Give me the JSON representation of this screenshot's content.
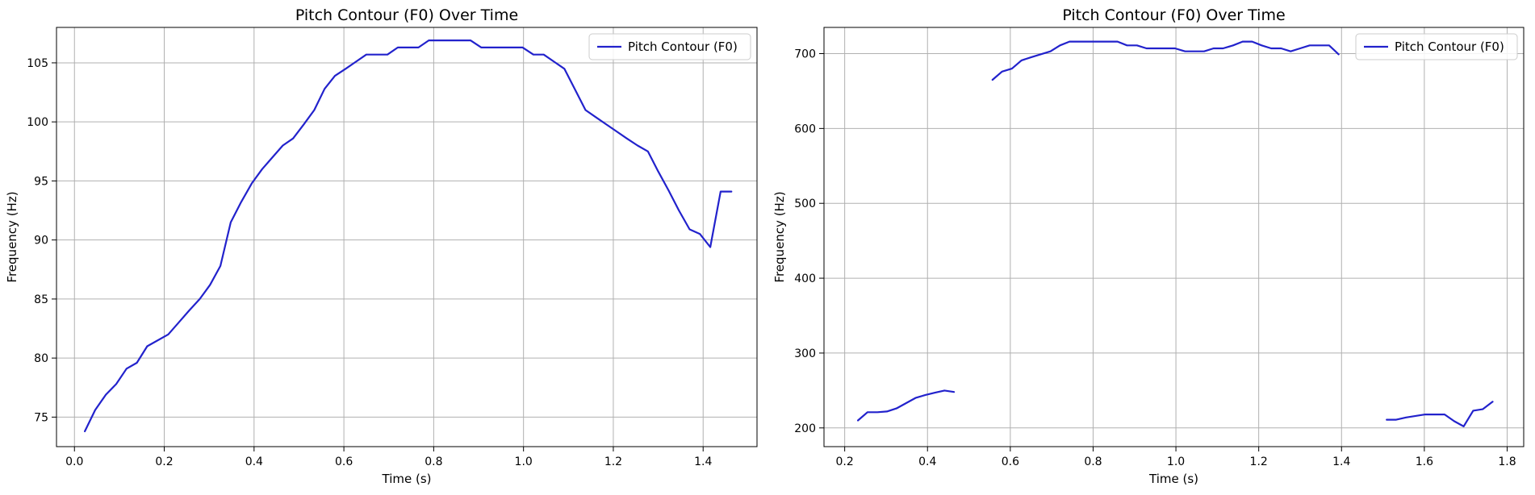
{
  "chart_data": [
    {
      "type": "line",
      "title": "Pitch Contour (F0) Over Time",
      "xlabel": "Time (s)",
      "ylabel": "Frequency (Hz)",
      "xlim": [
        -0.04,
        1.52
      ],
      "ylim": [
        72.5,
        108.0
      ],
      "xticks": [
        0.0,
        0.2,
        0.4,
        0.6,
        0.8,
        1.0,
        1.2,
        1.4
      ],
      "xtick_labels": [
        "0.0",
        "0.2",
        "0.4",
        "0.6",
        "0.8",
        "1.0",
        "1.2",
        "1.4"
      ],
      "yticks": [
        75,
        80,
        85,
        90,
        95,
        100,
        105
      ],
      "ytick_labels": [
        "75",
        "80",
        "85",
        "90",
        "95",
        "100",
        "105"
      ],
      "grid": true,
      "legend_position": "top-right",
      "series": [
        {
          "name": "Pitch Contour (F0)",
          "color": "#2222cc",
          "segments": [
            [
              [
                0.023,
                73.8
              ],
              [
                0.046,
                75.6
              ],
              [
                0.07,
                76.9
              ],
              [
                0.093,
                77.8
              ],
              [
                0.116,
                79.1
              ],
              [
                0.139,
                79.6
              ],
              [
                0.162,
                81.0
              ],
              [
                0.209,
                82.0
              ],
              [
                0.232,
                83.0
              ],
              [
                0.255,
                84.0
              ],
              [
                0.279,
                85.0
              ],
              [
                0.302,
                86.2
              ],
              [
                0.325,
                87.8
              ],
              [
                0.348,
                91.5
              ],
              [
                0.371,
                93.2
              ],
              [
                0.395,
                94.8
              ],
              [
                0.418,
                96.0
              ],
              [
                0.441,
                97.0
              ],
              [
                0.464,
                98.0
              ],
              [
                0.487,
                98.6
              ],
              [
                0.511,
                99.8
              ],
              [
                0.534,
                101.0
              ],
              [
                0.557,
                102.8
              ],
              [
                0.58,
                103.9
              ],
              [
                0.604,
                104.5
              ],
              [
                0.627,
                105.1
              ],
              [
                0.65,
                105.7
              ],
              [
                0.673,
                105.7
              ],
              [
                0.697,
                105.7
              ],
              [
                0.72,
                106.3
              ],
              [
                0.743,
                106.3
              ],
              [
                0.766,
                106.3
              ],
              [
                0.789,
                106.9
              ],
              [
                0.813,
                106.9
              ],
              [
                0.836,
                106.9
              ],
              [
                0.859,
                106.9
              ],
              [
                0.882,
                106.9
              ],
              [
                0.906,
                106.3
              ],
              [
                0.929,
                106.3
              ],
              [
                0.952,
                106.3
              ],
              [
                0.975,
                106.3
              ],
              [
                0.998,
                106.3
              ],
              [
                1.022,
                105.7
              ],
              [
                1.045,
                105.7
              ],
              [
                1.068,
                105.1
              ],
              [
                1.091,
                104.5
              ],
              [
                1.114,
                102.8
              ],
              [
                1.138,
                101.0
              ],
              [
                1.161,
                100.4
              ],
              [
                1.184,
                99.8
              ],
              [
                1.207,
                99.2
              ],
              [
                1.23,
                98.6
              ],
              [
                1.254,
                98.0
              ],
              [
                1.277,
                97.5
              ],
              [
                1.3,
                95.8
              ],
              [
                1.323,
                94.2
              ],
              [
                1.346,
                92.5
              ],
              [
                1.37,
                90.9
              ],
              [
                1.393,
                90.5
              ],
              [
                1.416,
                89.4
              ],
              [
                1.439,
                94.1
              ],
              [
                1.463,
                94.1
              ]
            ]
          ]
        }
      ]
    },
    {
      "type": "line",
      "title": "Pitch Contour (F0) Over Time",
      "xlabel": "Time (s)",
      "ylabel": "Frequency (Hz)",
      "xlim": [
        0.15,
        1.84
      ],
      "ylim": [
        175,
        735
      ],
      "xticks": [
        0.2,
        0.4,
        0.6,
        0.8,
        1.0,
        1.2,
        1.4,
        1.6,
        1.8
      ],
      "xtick_labels": [
        "0.2",
        "0.4",
        "0.6",
        "0.8",
        "1.0",
        "1.2",
        "1.4",
        "1.6",
        "1.8"
      ],
      "yticks": [
        200,
        300,
        400,
        500,
        600,
        700
      ],
      "ytick_labels": [
        "200",
        "300",
        "400",
        "500",
        "600",
        "700"
      ],
      "grid": true,
      "legend_position": "top-right",
      "series": [
        {
          "name": "Pitch Contour (F0)",
          "color": "#2222cc",
          "segments": [
            [
              [
                0.232,
                210
              ],
              [
                0.255,
                221
              ],
              [
                0.279,
                221
              ],
              [
                0.302,
                222
              ],
              [
                0.325,
                226
              ],
              [
                0.348,
                233
              ],
              [
                0.371,
                240
              ],
              [
                0.395,
                244
              ],
              [
                0.418,
                247
              ],
              [
                0.441,
                250
              ],
              [
                0.464,
                248
              ]
            ],
            [
              [
                0.557,
                665
              ],
              [
                0.58,
                676
              ],
              [
                0.604,
                680
              ],
              [
                0.627,
                691
              ],
              [
                0.65,
                695
              ],
              [
                0.673,
                699
              ],
              [
                0.697,
                703
              ],
              [
                0.72,
                711
              ],
              [
                0.743,
                716
              ],
              [
                0.766,
                716
              ],
              [
                0.789,
                716
              ],
              [
                0.813,
                716
              ],
              [
                0.836,
                716
              ],
              [
                0.859,
                716
              ],
              [
                0.882,
                711
              ],
              [
                0.906,
                711
              ],
              [
                0.929,
                707
              ],
              [
                0.952,
                707
              ],
              [
                0.975,
                707
              ],
              [
                0.998,
                707
              ],
              [
                1.022,
                703
              ],
              [
                1.045,
                703
              ],
              [
                1.068,
                703
              ],
              [
                1.091,
                707
              ],
              [
                1.114,
                707
              ],
              [
                1.138,
                711
              ],
              [
                1.161,
                716
              ],
              [
                1.184,
                716
              ],
              [
                1.207,
                711
              ],
              [
                1.23,
                707
              ],
              [
                1.254,
                707
              ],
              [
                1.277,
                703
              ],
              [
                1.3,
                707
              ],
              [
                1.323,
                711
              ],
              [
                1.346,
                711
              ],
              [
                1.37,
                711
              ],
              [
                1.393,
                699
              ]
            ],
            [
              [
                1.509,
                211
              ],
              [
                1.532,
                211
              ],
              [
                1.556,
                214
              ],
              [
                1.579,
                216
              ],
              [
                1.602,
                218
              ],
              [
                1.625,
                218
              ],
              [
                1.649,
                218
              ],
              [
                1.672,
                209
              ],
              [
                1.695,
                202
              ],
              [
                1.718,
                223
              ],
              [
                1.741,
                225
              ],
              [
                1.765,
                235
              ]
            ]
          ]
        }
      ]
    }
  ]
}
